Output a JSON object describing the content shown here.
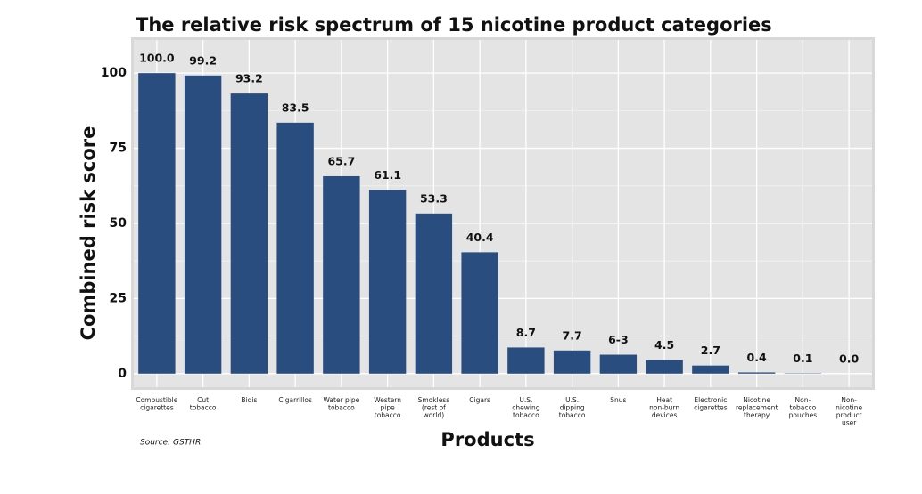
{
  "chart_data": {
    "type": "bar",
    "title": "The relative risk spectrum of 15 nicotine product categories",
    "x_label": "Products",
    "y_label": "Combined risk score",
    "source": "Source: GSTHR",
    "categories": [
      "Combustible\ncigarettes",
      "Cut\ntobacco",
      "Bidis",
      "Cigarrillos",
      "Water pipe\ntobacco",
      "Western\npipe\ntobacco",
      "Smokless\n(rest of\nworld)",
      "Cigars",
      "U.S.\nchewing\ntobacco",
      "U.S.\ndipping\ntobacco",
      "Snus",
      "Heat\nnon-burn\ndevices",
      "Electronic\ncigarettes",
      "Nicotine\nreplacement\ntherapy",
      "Non-\ntobacco\npouches",
      "Non-\nnicotine\nproduct\nuser"
    ],
    "values": [
      100,
      99.2,
      93.2,
      83.5,
      65.7,
      61.1,
      53.3,
      40.4,
      8.7,
      7.7,
      6.3,
      4.5,
      2.7,
      0.4,
      0.1,
      0
    ],
    "value_labels": [
      "100.0",
      "99.2",
      "93.2",
      "83.5",
      "65.7",
      "61.1",
      "53.3",
      "40.4",
      "8.7",
      "7.7",
      "6-3",
      "4.5",
      "2.7",
      "0.4",
      "0.1",
      "0.0"
    ],
    "color": "#2a4d80",
    "ylim": [
      -4.5,
      111
    ],
    "yticks": [
      0,
      25,
      50,
      75,
      100
    ],
    "grid": true
  }
}
